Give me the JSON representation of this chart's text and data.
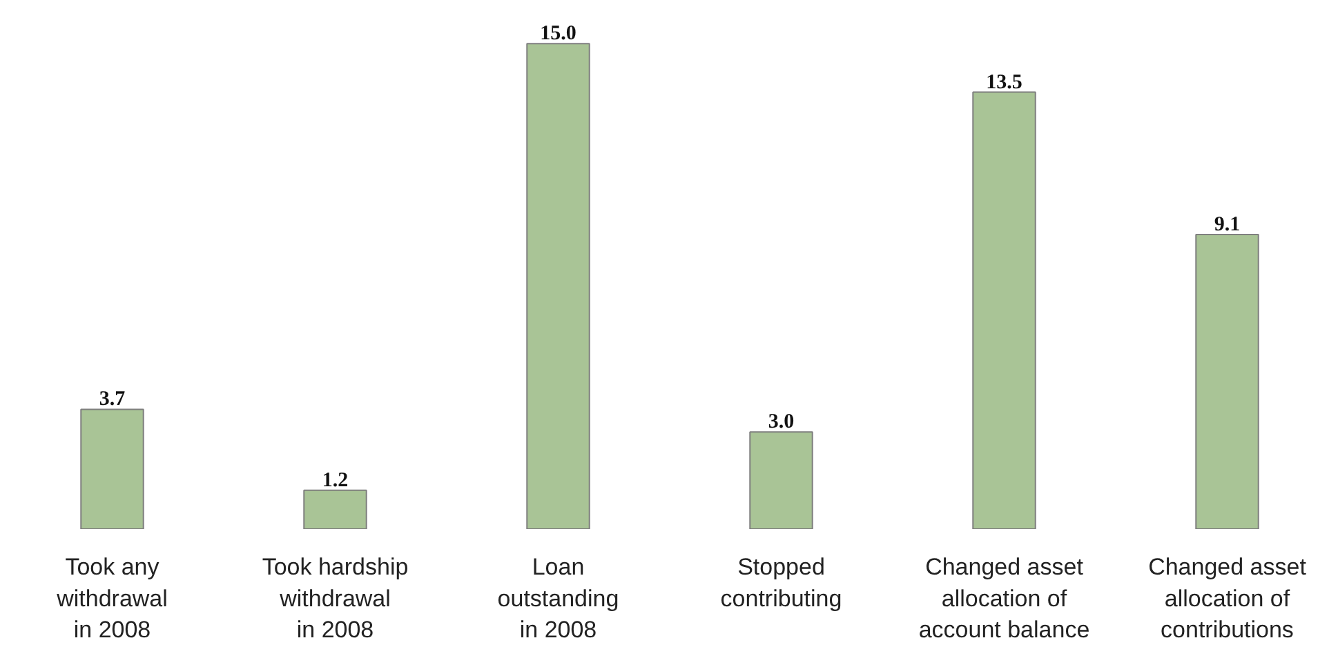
{
  "chart_data": {
    "type": "bar",
    "categories": [
      "Took any\nwithdrawal\nin 2008",
      "Took hardship\nwithdrawal\nin 2008",
      "Loan\noutstanding\nin 2008",
      "Stopped\ncontributing",
      "Changed asset\nallocation of\naccount balance",
      "Changed asset\nallocation of\ncontributions"
    ],
    "values": [
      3.7,
      1.2,
      15.0,
      3.0,
      13.5,
      9.1
    ],
    "value_labels": [
      "3.7",
      "1.2",
      "15.0",
      "3.0",
      "13.5",
      "9.1"
    ],
    "color": "#a9c496"
  }
}
